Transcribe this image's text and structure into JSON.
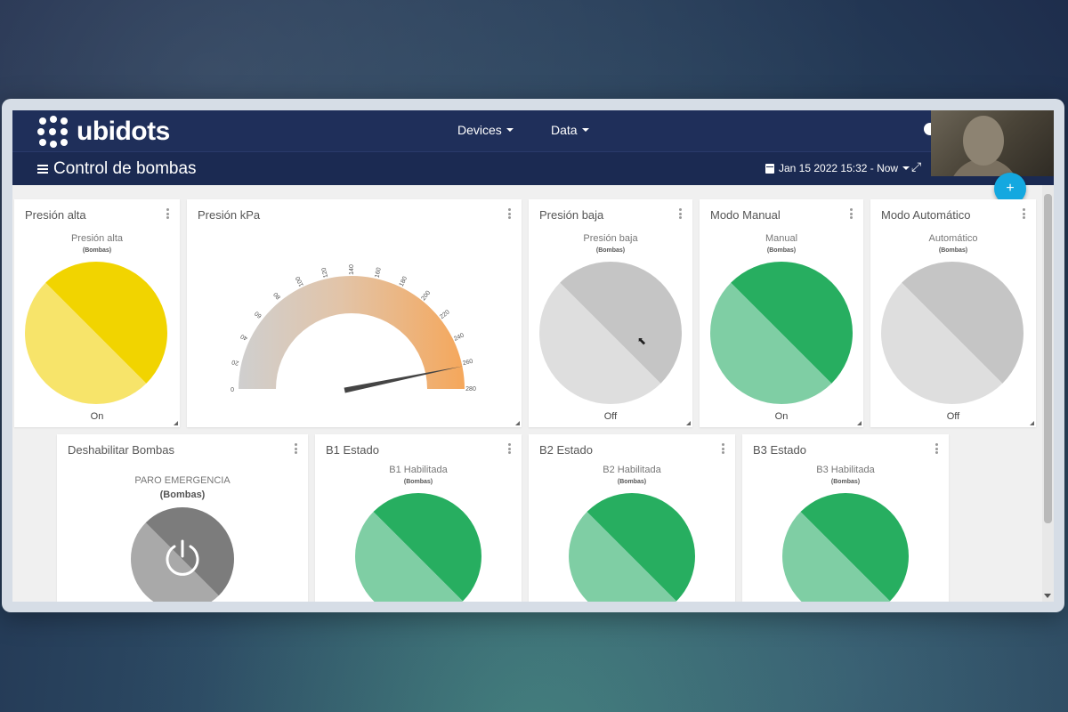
{
  "brand": {
    "name": "ubidots"
  },
  "nav": {
    "devices": "Devices",
    "data": "Data"
  },
  "dashboard": {
    "title": "Control de bombas",
    "date_range": "Jan 15 2022 15:32 - Now"
  },
  "fab": {
    "label": "+"
  },
  "colors": {
    "on_yellow_dark": "#f1d400",
    "on_yellow_light": "#f7e46a",
    "on_green_dark": "#27ae60",
    "on_green_light": "#7fcea4",
    "off_dark": "#c5c5c5",
    "off_light": "#dedede",
    "gauge_low": "#cfcfcf",
    "gauge_high": "#f5a75b",
    "accent": "#14a8e0"
  },
  "widgets": {
    "presion_alta": {
      "title": "Presión alta",
      "label": "Presión alta",
      "device": "(Bombas)",
      "state": "On"
    },
    "presion_kpa": {
      "title": "Presión kPa",
      "ticks": [
        "0",
        "20",
        "40",
        "60",
        "80",
        "100",
        "120",
        "140",
        "160",
        "180",
        "200",
        "220",
        "240",
        "260",
        "280"
      ],
      "min": 0,
      "max": 280,
      "value": 262
    },
    "presion_baja": {
      "title": "Presión baja",
      "label": "Presión baja",
      "device": "(Bombas)",
      "state": "Off"
    },
    "modo_manual": {
      "title": "Modo Manual",
      "label": "Manual",
      "device": "(Bombas)",
      "state": "On"
    },
    "modo_automatico": {
      "title": "Modo Automático",
      "label": "Automático",
      "device": "(Bombas)",
      "state": "Off"
    },
    "deshabilitar": {
      "title": "Deshabilitar Bombas",
      "label": "PARO EMERGENCIA",
      "device": "(Bombas)"
    },
    "b1": {
      "title": "B1 Estado",
      "label": "B1 Habilitada",
      "device": "(Bombas)"
    },
    "b2": {
      "title": "B2 Estado",
      "label": "B2 Habilitada",
      "device": "(Bombas)"
    },
    "b3": {
      "title": "B3 Estado",
      "label": "B3 Habilitada",
      "device": "(Bombas)"
    }
  }
}
